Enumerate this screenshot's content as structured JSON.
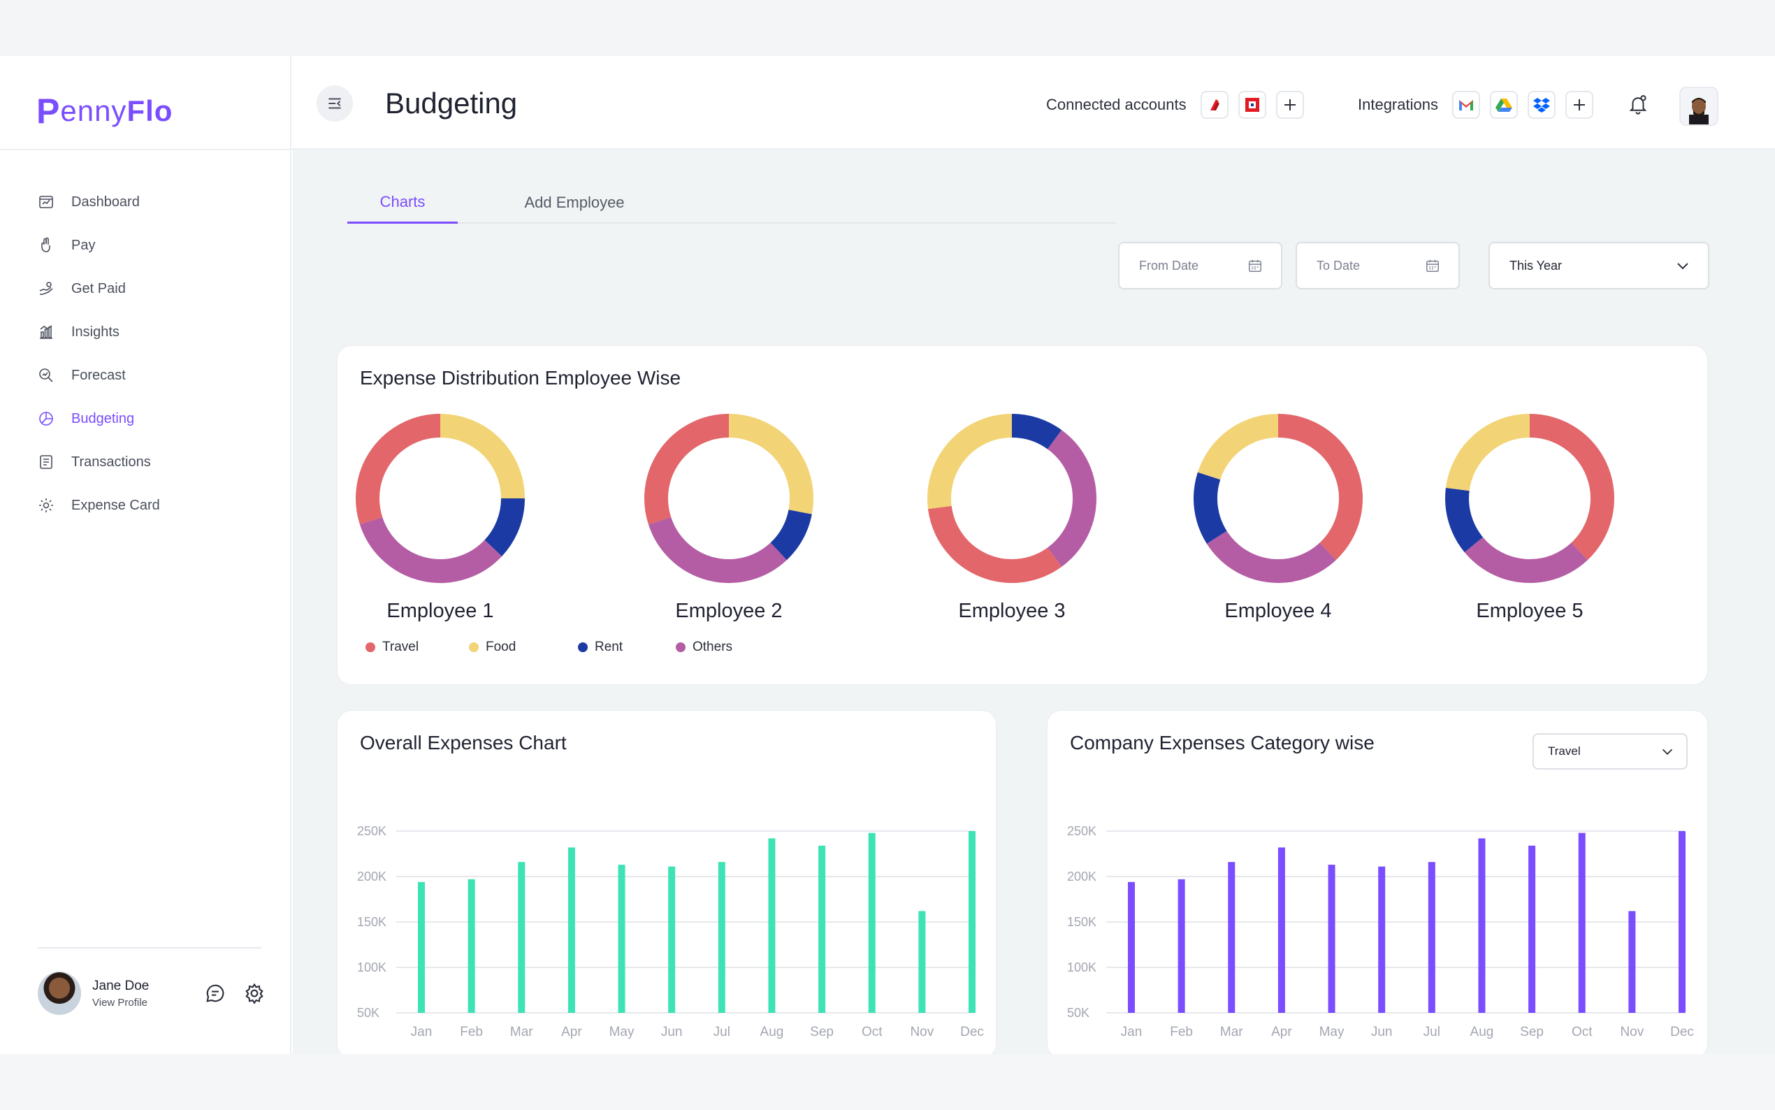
{
  "logo": {
    "p": "P",
    "enny": "enny",
    "flo": "Flo"
  },
  "sidebar": {
    "items": [
      {
        "label": "Dashboard",
        "icon": "dashboard-icon"
      },
      {
        "label": "Pay",
        "icon": "hand-icon"
      },
      {
        "label": "Get Paid",
        "icon": "hand-money-icon"
      },
      {
        "label": "Insights",
        "icon": "bar-chart-icon"
      },
      {
        "label": "Forecast",
        "icon": "search-chart-icon"
      },
      {
        "label": "Budgeting",
        "icon": "pie-chart-icon",
        "active": true
      },
      {
        "label": "Transactions",
        "icon": "receipt-icon"
      },
      {
        "label": "Expense Card",
        "icon": "gear-icon"
      }
    ],
    "profile": {
      "name": "Jane Doe",
      "link": "View Profile"
    }
  },
  "header": {
    "title": "Budgeting",
    "connected_label": "Connected accounts",
    "integrations_label": "Integrations"
  },
  "tabs": {
    "charts": "Charts",
    "add_employee": "Add Employee"
  },
  "filters": {
    "from_date": "From Date",
    "to_date": "To Date",
    "period": "This Year"
  },
  "expense_card": {
    "title": "Expense Distribution Employee Wise",
    "legend": [
      "Travel",
      "Food",
      "Rent",
      "Others"
    ],
    "colors": {
      "Travel": "#e2666a",
      "Food": "#f2d476",
      "Rent": "#1b3aa3",
      "Others": "#b45da4"
    },
    "employees": [
      {
        "name": "Employee 1"
      },
      {
        "name": "Employee 2"
      },
      {
        "name": "Employee 3"
      },
      {
        "name": "Employee 4"
      },
      {
        "name": "Employee 5"
      }
    ]
  },
  "overall_card": {
    "title": "Overall Expenses Chart"
  },
  "category_card": {
    "title": "Company Expenses Category wise",
    "select": "Travel"
  },
  "chart_data": [
    {
      "type": "pie",
      "title": "Employee 1",
      "categories": [
        "Travel",
        "Food",
        "Rent",
        "Others"
      ],
      "start": "Food",
      "values": [
        30,
        25,
        12,
        33
      ]
    },
    {
      "type": "pie",
      "title": "Employee 2",
      "categories": [
        "Food",
        "Rent",
        "Others",
        "Travel"
      ],
      "values": [
        28,
        10,
        32,
        30
      ]
    },
    {
      "type": "pie",
      "title": "Employee 3",
      "categories": [
        "Rent",
        "Others",
        "Travel",
        "Food"
      ],
      "values": [
        10,
        30,
        33,
        27
      ]
    },
    {
      "type": "pie",
      "title": "Employee 4",
      "categories": [
        "Travel",
        "Others",
        "Rent",
        "Food"
      ],
      "values": [
        38,
        28,
        14,
        20
      ]
    },
    {
      "type": "pie",
      "title": "Employee 5",
      "categories": [
        "Travel",
        "Others",
        "Rent",
        "Food"
      ],
      "values": [
        38,
        26,
        13,
        23
      ]
    },
    {
      "type": "bar",
      "title": "Overall Expenses Chart",
      "categories": [
        "Jan",
        "Feb",
        "Mar",
        "Apr",
        "May",
        "Jun",
        "Jul",
        "Aug",
        "Sep",
        "Oct",
        "Nov",
        "Dec"
      ],
      "values": [
        194,
        197,
        216,
        232,
        213,
        211,
        216,
        242,
        234,
        248,
        162,
        250
      ],
      "ylim": [
        50,
        250
      ],
      "yticks": [
        "250K",
        "200K",
        "150K",
        "100K",
        "50K"
      ],
      "color": "#3de3b4"
    },
    {
      "type": "bar",
      "title": "Company Expenses Category wise",
      "categories": [
        "Jan",
        "Feb",
        "Mar",
        "Apr",
        "May",
        "Jun",
        "Jul",
        "Aug",
        "Sep",
        "Oct",
        "Nov",
        "Dec"
      ],
      "values": [
        194,
        197,
        216,
        232,
        213,
        211,
        216,
        242,
        234,
        248,
        162,
        250
      ],
      "ylim": [
        50,
        250
      ],
      "yticks": [
        "250K",
        "200K",
        "150K",
        "100K",
        "50K"
      ],
      "color": "#7a4dff"
    }
  ]
}
